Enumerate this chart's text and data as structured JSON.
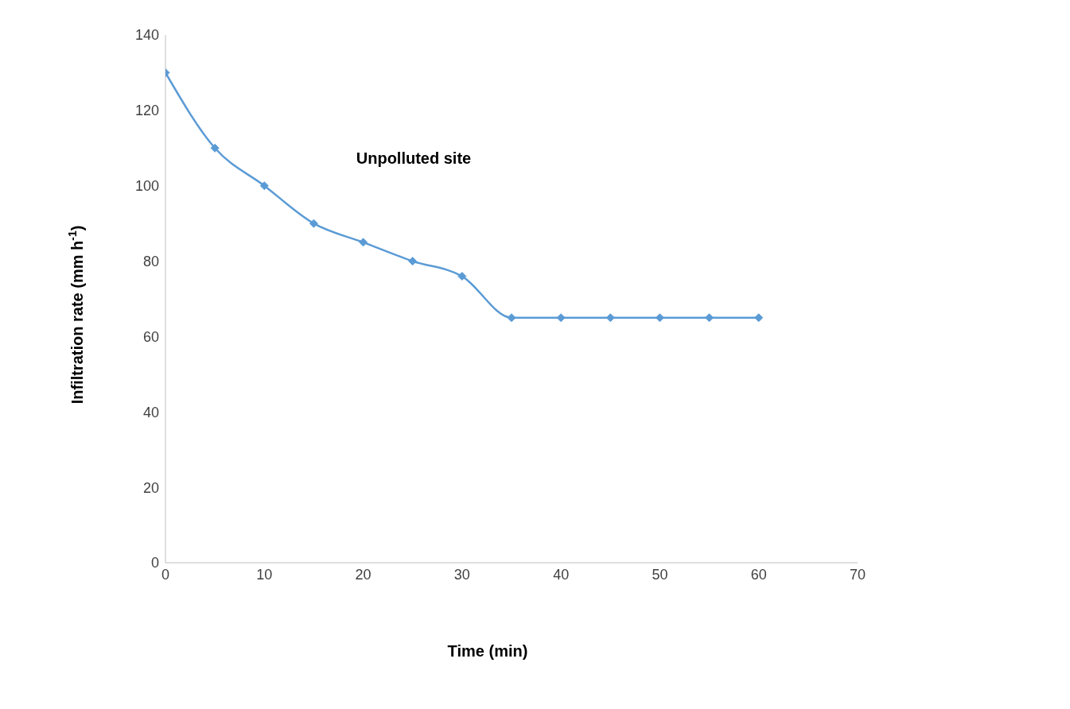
{
  "chart_data": {
    "type": "line",
    "xlabel": "Time (min)",
    "ylabel": "Infiltration rate (mm h$^{-1}$)",
    "annotations": [
      "Unpolluted site"
    ],
    "x": [
      0,
      5,
      10,
      15,
      20,
      25,
      30,
      35,
      40,
      45,
      50,
      55,
      60
    ],
    "series": [
      {
        "color": "#5b9bd5",
        "values": [
          130,
          110,
          100,
          90,
          85,
          80,
          76,
          65,
          65,
          65,
          65,
          65,
          65
        ]
      }
    ],
    "xlim": [
      0,
      70
    ],
    "xticks": [
      0,
      10,
      20,
      30,
      40,
      50,
      60,
      70
    ],
    "ylim": [
      0,
      140
    ],
    "yticks": [
      0,
      20,
      40,
      60,
      80,
      100,
      120,
      140
    ],
    "marker": "diamond",
    "line_style": "solid"
  }
}
